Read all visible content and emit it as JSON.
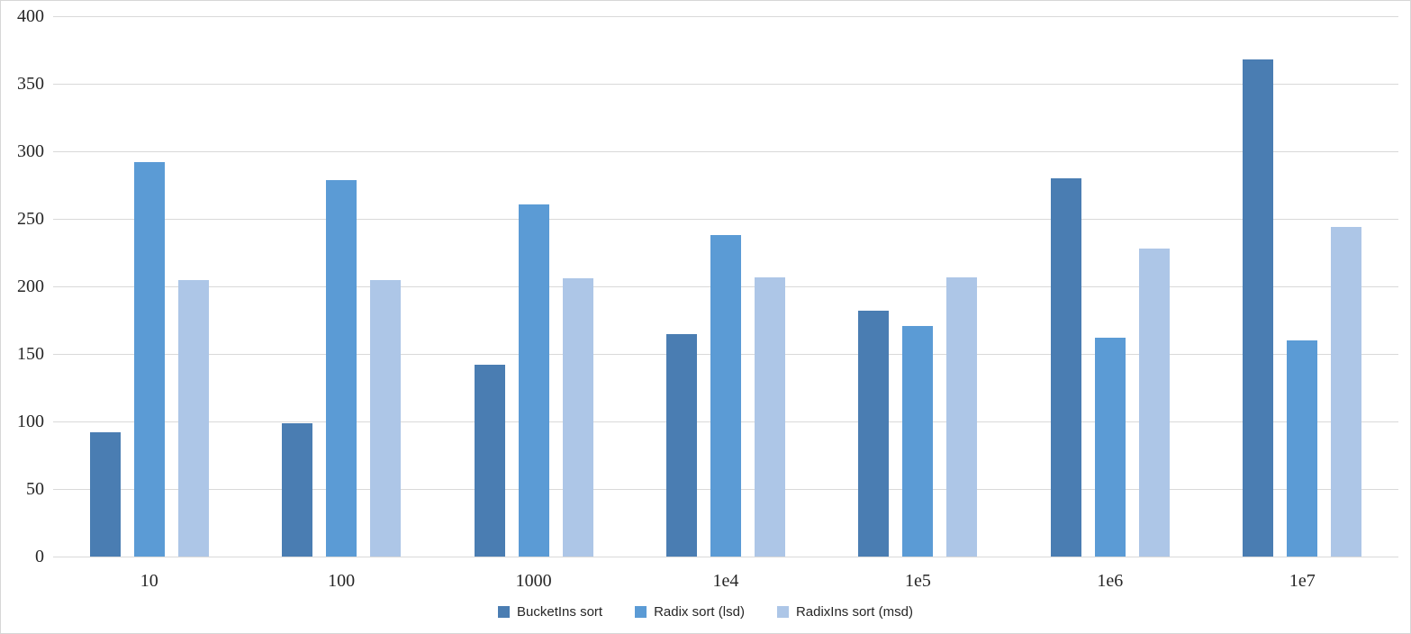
{
  "chart_data": {
    "type": "bar",
    "title": "",
    "xlabel": "",
    "ylabel": "",
    "categories": [
      "10",
      "100",
      "1000",
      "1e4",
      "1e5",
      "1e6",
      "1e7"
    ],
    "series": [
      {
        "name": "BucketIns sort",
        "color": "#4a7db2",
        "values": [
          92,
          99,
          142,
          165,
          182,
          280,
          368
        ]
      },
      {
        "name": "Radix sort (lsd)",
        "color": "#5b9bd5",
        "values": [
          292,
          279,
          261,
          238,
          171,
          162,
          160
        ]
      },
      {
        "name": "RadixIns sort (msd)",
        "color": "#adc6e7",
        "values": [
          205,
          205,
          206,
          207,
          207,
          228,
          244
        ]
      }
    ],
    "ylim": [
      0,
      400
    ],
    "yticks": [
      0,
      50,
      100,
      150,
      200,
      250,
      300,
      350,
      400
    ],
    "grid": "horizontal",
    "legend_position": "bottom"
  },
  "colors": {
    "gridline": "#d9d9d9",
    "axis_text": "#262626",
    "frame_border": "#d7d7d7",
    "background": "#ffffff"
  }
}
